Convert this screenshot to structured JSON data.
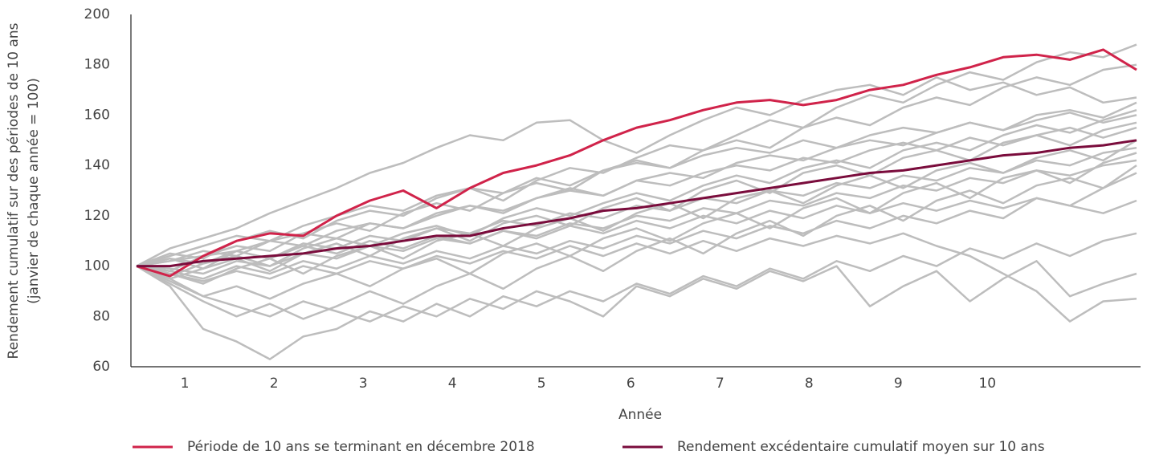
{
  "chart_data": {
    "type": "line",
    "ylabel": [
      "Rendement cumulatif sur des périodes de 10 ans",
      "(janvier de chaque année = 100)"
    ],
    "xlabel": "Année",
    "x": [
      0,
      4,
      8,
      12,
      16,
      20,
      24,
      28,
      32,
      36,
      40,
      44,
      48,
      52,
      56,
      60,
      64,
      68,
      72,
      76,
      80,
      84,
      88,
      92,
      96,
      100,
      104,
      108,
      112,
      116,
      120
    ],
    "xlim": [
      0,
      120
    ],
    "xticks": [
      {
        "value": 5.8,
        "label": "1"
      },
      {
        "value": 16.5,
        "label": "2"
      },
      {
        "value": 27.2,
        "label": "3"
      },
      {
        "value": 37.9,
        "label": "4"
      },
      {
        "value": 48.6,
        "label": "5"
      },
      {
        "value": 59.3,
        "label": "6"
      },
      {
        "value": 70,
        "label": "7"
      },
      {
        "value": 80.7,
        "label": "8"
      },
      {
        "value": 91.4,
        "label": "9"
      },
      {
        "value": 102.1,
        "label": "10"
      }
    ],
    "ylim": [
      60,
      200
    ],
    "yticks": [
      60,
      80,
      100,
      120,
      140,
      160,
      180,
      200
    ],
    "series": [
      {
        "color": "#bdbdbd",
        "values": [
          100,
          105,
          103,
          110,
          114,
          111,
          118,
          122,
          120,
          127,
          131,
          126,
          134,
          139,
          137,
          143,
          148,
          146,
          152,
          158,
          155,
          163,
          168,
          165,
          172,
          177,
          174,
          181,
          185,
          183,
          188
        ]
      },
      {
        "color": "#bdbdbd",
        "values": [
          100,
          98,
          104,
          108,
          106,
          113,
          117,
          114,
          121,
          125,
          122,
          129,
          133,
          130,
          138,
          142,
          139,
          146,
          150,
          147,
          155,
          159,
          156,
          163,
          167,
          164,
          171,
          175,
          172,
          178,
          180
        ]
      },
      {
        "color": "#bdbdbd",
        "values": [
          100,
          107,
          111,
          115,
          121,
          126,
          131,
          137,
          141,
          147,
          152,
          150,
          157,
          158,
          150,
          145,
          152,
          158,
          163,
          160,
          166,
          170,
          172,
          168,
          175,
          170,
          173,
          168,
          171,
          165,
          167
        ]
      },
      {
        "color": "#bdbdbd",
        "values": [
          100,
          103,
          99,
          106,
          110,
          108,
          114,
          117,
          115,
          120,
          124,
          121,
          127,
          130,
          128,
          134,
          137,
          135,
          141,
          144,
          142,
          147,
          150,
          148,
          153,
          157,
          154,
          160,
          162,
          159,
          165
        ]
      },
      {
        "color": "#bdbdbd",
        "values": [
          100,
          96,
          101,
          104,
          100,
          107,
          111,
          108,
          113,
          116,
          112,
          119,
          123,
          120,
          125,
          129,
          126,
          132,
          136,
          133,
          139,
          142,
          139,
          146,
          149,
          146,
          152,
          156,
          153,
          158,
          162
        ]
      },
      {
        "color": "#bdbdbd",
        "values": [
          100,
          104,
          108,
          112,
          110,
          116,
          120,
          124,
          122,
          128,
          131,
          129,
          135,
          132,
          138,
          141,
          139,
          144,
          147,
          145,
          150,
          147,
          152,
          155,
          153,
          157,
          154,
          158,
          161,
          157,
          160
        ]
      },
      {
        "color": "#bdbdbd",
        "values": [
          100,
          95,
          99,
          103,
          98,
          105,
          109,
          104,
          111,
          115,
          110,
          117,
          120,
          116,
          123,
          127,
          122,
          130,
          134,
          129,
          137,
          140,
          136,
          143,
          146,
          142,
          149,
          152,
          148,
          154,
          157
        ]
      },
      {
        "color": "#bdbdbd",
        "values": [
          100,
          102,
          106,
          104,
          110,
          113,
          111,
          117,
          115,
          121,
          124,
          122,
          127,
          131,
          128,
          134,
          132,
          137,
          140,
          138,
          143,
          141,
          146,
          149,
          146,
          151,
          148,
          152,
          155,
          151,
          155
        ]
      },
      {
        "color": "#bdbdbd",
        "values": [
          100,
          97,
          93,
          99,
          103,
          97,
          104,
          108,
          103,
          110,
          113,
          108,
          115,
          119,
          114,
          121,
          125,
          119,
          127,
          130,
          125,
          132,
          136,
          131,
          138,
          141,
          137,
          143,
          146,
          142,
          150
        ]
      },
      {
        "color": "#bdbdbd",
        "values": [
          100,
          103,
          101,
          106,
          103,
          109,
          107,
          112,
          110,
          115,
          113,
          118,
          116,
          121,
          119,
          124,
          122,
          127,
          125,
          130,
          128,
          133,
          131,
          136,
          134,
          139,
          137,
          142,
          140,
          145,
          147
        ]
      },
      {
        "color": "#bdbdbd",
        "values": [
          100,
          94,
          88,
          92,
          87,
          93,
          97,
          92,
          99,
          103,
          97,
          105,
          109,
          104,
          111,
          115,
          110,
          117,
          121,
          115,
          123,
          127,
          121,
          129,
          133,
          127,
          135,
          138,
          133,
          141,
          145
        ]
      },
      {
        "color": "#bdbdbd",
        "values": [
          100,
          99,
          97,
          102,
          100,
          105,
          103,
          108,
          106,
          111,
          109,
          114,
          112,
          117,
          115,
          120,
          118,
          123,
          121,
          126,
          124,
          129,
          127,
          132,
          130,
          135,
          133,
          138,
          136,
          140,
          142
        ]
      },
      {
        "color": "#bdbdbd",
        "values": [
          100,
          93,
          86,
          80,
          85,
          79,
          84,
          90,
          85,
          92,
          97,
          91,
          99,
          104,
          98,
          106,
          111,
          105,
          113,
          118,
          112,
          120,
          124,
          118,
          126,
          130,
          125,
          132,
          135,
          131,
          140
        ]
      },
      {
        "color": "#bdbdbd",
        "values": [
          100,
          98,
          95,
          100,
          97,
          102,
          99,
          104,
          101,
          106,
          103,
          108,
          105,
          110,
          107,
          112,
          109,
          114,
          111,
          116,
          113,
          118,
          115,
          120,
          117,
          122,
          119,
          127,
          124,
          131,
          137
        ]
      },
      {
        "color": "#bdbdbd",
        "values": [
          100,
          102,
          104,
          106,
          103,
          108,
          105,
          110,
          107,
          112,
          109,
          114,
          111,
          116,
          113,
          118,
          115,
          120,
          117,
          122,
          119,
          124,
          121,
          125,
          122,
          126,
          123,
          127,
          124,
          121,
          126
        ]
      },
      {
        "color": "#bdbdbd",
        "values": [
          100,
          92,
          75,
          70,
          63,
          72,
          75,
          82,
          78,
          85,
          80,
          88,
          84,
          90,
          86,
          93,
          89,
          96,
          92,
          99,
          95,
          102,
          98,
          104,
          100,
          107,
          103,
          109,
          104,
          110,
          113
        ]
      },
      {
        "color": "#bdbdbd",
        "values": [
          100,
          95,
          88,
          84,
          80,
          86,
          82,
          78,
          84,
          80,
          87,
          83,
          90,
          86,
          80,
          92,
          88,
          95,
          91,
          98,
          94,
          100,
          84,
          92,
          98,
          86,
          95,
          102,
          88,
          93,
          97
        ]
      },
      {
        "color": "#bdbdbd",
        "values": [
          100,
          97,
          94,
          98,
          95,
          100,
          97,
          102,
          99,
          104,
          101,
          106,
          103,
          108,
          104,
          109,
          105,
          110,
          106,
          111,
          108,
          112,
          109,
          113,
          108,
          104,
          97,
          90,
          78,
          86,
          87
        ]
      },
      {
        "name": "Période de 10 ans se terminant en décembre 2018",
        "color": "#d0234a",
        "values": [
          100,
          96,
          104,
          110,
          113,
          112,
          120,
          126,
          130,
          123,
          131,
          137,
          140,
          144,
          150,
          155,
          158,
          162,
          165,
          166,
          164,
          166,
          170,
          172,
          176,
          179,
          183,
          184,
          182,
          186,
          178
        ]
      },
      {
        "name": "Rendement excédentaire cumulatif moyen sur 10 ans",
        "color": "#7a0c3c",
        "values": [
          100,
          100,
          102,
          103,
          104,
          105,
          107,
          108,
          110,
          112,
          112,
          115,
          117,
          119,
          122,
          123,
          125,
          127,
          129,
          131,
          133,
          135,
          137,
          138,
          140,
          142,
          144,
          145,
          147,
          148,
          150
        ]
      }
    ]
  }
}
